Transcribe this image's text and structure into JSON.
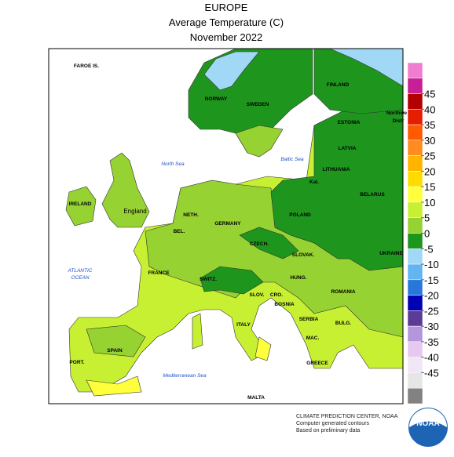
{
  "header": {
    "region": "EUROPE",
    "subtitle": "Average Temperature (C)",
    "period": "November 2022"
  },
  "legend": {
    "ticks": [
      45,
      40,
      35,
      30,
      25,
      20,
      15,
      10,
      5,
      0,
      -5,
      -10,
      -15,
      -20,
      -25,
      -30,
      -35,
      -40,
      -45
    ],
    "colors": [
      "#f07dd0",
      "#c81e96",
      "#b40000",
      "#e61e00",
      "#ff5a00",
      "#ff8c1e",
      "#ffb400",
      "#ffdc00",
      "#ffff3c",
      "#c8f032",
      "#96d232",
      "#1e961e",
      "#a0d8f5",
      "#64b4f0",
      "#2878dc",
      "#0000b4",
      "#5a3c96",
      "#b496dc",
      "#e6c8f0",
      "#f0e6f5",
      "#e6e6e6",
      "#828282"
    ]
  },
  "labels": {
    "faroe": "FAROE IS.",
    "norway": "NORWAY",
    "sweden": "SWEDEN",
    "finland": "FINLAND",
    "estonia": "ESTONIA",
    "latvia": "LATVIA",
    "lithuania": "LITHUANIA",
    "kal": "Kal.",
    "belarus": "BELARUS",
    "north_sea": "North Sea",
    "baltic_sea": "Baltic Sea",
    "ireland": "IRELAND",
    "england": "England",
    "neth": "NETH.",
    "bel": "BEL.",
    "germany": "GERMANY",
    "poland": "POLAND",
    "czech": "CZECH.",
    "slovak": "SLOVAK.",
    "ukraine": "UKRAINE",
    "france": "FRANCE",
    "switz": "SWITZ.",
    "hung": "HUNG.",
    "slov": "SLOV.",
    "cro": "CRO.",
    "bosnia": "BOSNIA",
    "romania": "ROMANIA",
    "serbia": "SERBIA",
    "bulg": "BULG.",
    "mac": "MAC.",
    "italy": "ITALY",
    "spain": "SPAIN",
    "port": "PORT.",
    "greece": "GREECE",
    "malta": "MALTA",
    "atlantic": "ATLANTIC",
    "ocean": "OCEAN",
    "med": "Mediterranean Sea",
    "northw": "Northwe",
    "distr": "Distr"
  },
  "credit": {
    "line1": "CLIMATE PREDICTION CENTER, NOAA",
    "line2": "Computer generated contours",
    "line3": "Based on preliminary data",
    "logo": "NOAA"
  }
}
